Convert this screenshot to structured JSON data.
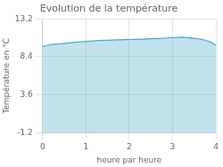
{
  "chart_data": {
    "type": "area",
    "title": "Evolution de la température",
    "xlabel": "heure par heure",
    "ylabel": "Température en °C",
    "color": "#44aacc",
    "x": [
      0.0,
      0.1,
      0.2,
      0.3,
      0.4,
      0.5,
      0.6,
      0.7,
      0.8,
      0.9,
      1.0,
      1.1,
      1.2,
      1.3,
      1.4,
      1.5,
      1.6,
      1.7,
      1.8,
      1.9,
      2.0,
      2.1,
      2.2,
      2.3,
      2.4,
      2.5,
      2.6,
      2.7,
      2.8,
      2.9,
      3.0,
      3.1,
      3.2,
      3.3,
      3.4,
      3.5,
      3.6,
      3.7,
      3.8,
      3.9,
      4.0
    ],
    "values": [
      9.7,
      9.85,
      9.95,
      10.0,
      10.05,
      10.1,
      10.15,
      10.2,
      10.25,
      10.3,
      10.35,
      10.38,
      10.42,
      10.45,
      10.48,
      10.5,
      10.52,
      10.54,
      10.55,
      10.56,
      10.58,
      10.6,
      10.62,
      10.63,
      10.65,
      10.67,
      10.7,
      10.72,
      10.75,
      10.78,
      10.82,
      10.85,
      10.87,
      10.84,
      10.8,
      10.74,
      10.67,
      10.56,
      10.42,
      10.2,
      9.85
    ],
    "xlim": [
      0,
      4
    ],
    "ylim": [
      -1.2,
      13.2
    ],
    "xticks": [
      0,
      1,
      2,
      3,
      4
    ],
    "yticks": [
      -1.2,
      3.6,
      8.4,
      13.2
    ],
    "grid": true
  }
}
